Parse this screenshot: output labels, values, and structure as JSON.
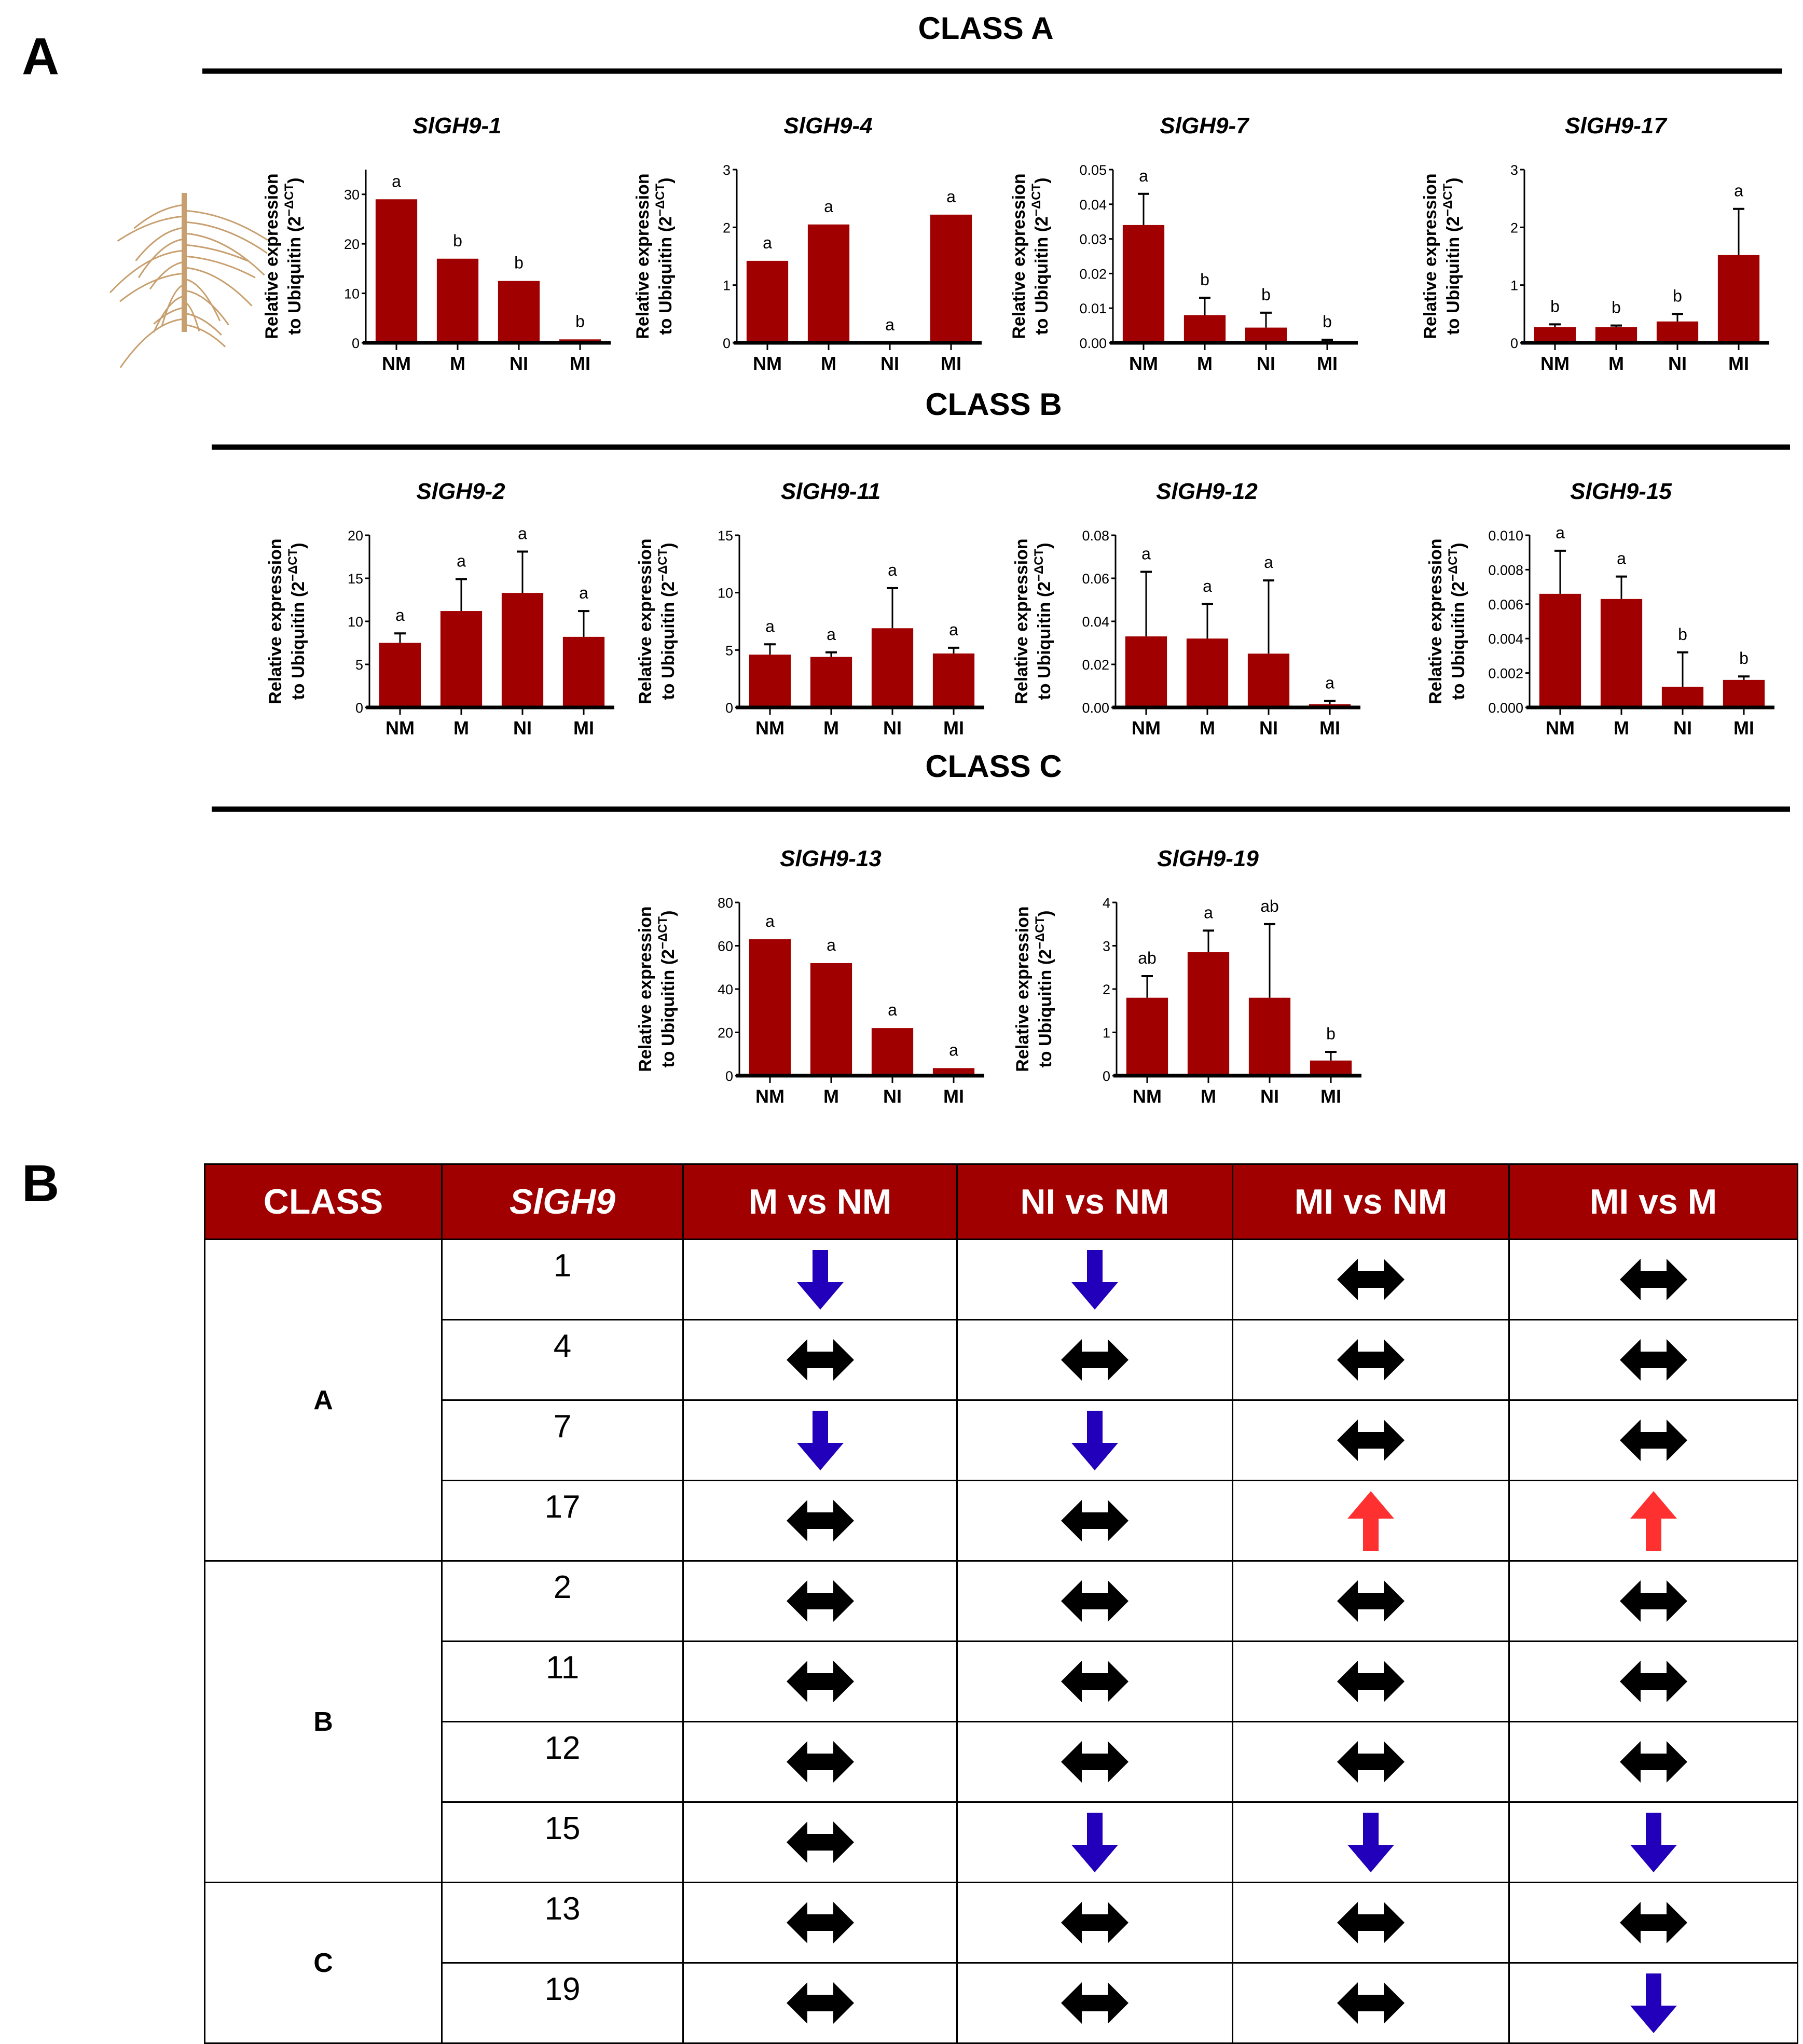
{
  "panel_labels": {
    "a": "A",
    "b": "B"
  },
  "class_titles": [
    "CLASS A",
    "CLASS B",
    "CLASS C"
  ],
  "ylabel": {
    "line1": "Relative expression",
    "line2": "to Ubiquitin (2",
    "exp": "−ΔCT",
    "close": ")"
  },
  "colors": {
    "bar": "#a00000",
    "down": "#2200bb",
    "up": "#ff3030",
    "both": "#000000",
    "header_bg": "#a00000",
    "root": "#c8a070"
  },
  "chart_data": [
    {
      "type": "bar",
      "class": "A",
      "title": "SlGH9-1",
      "categories": [
        "NM",
        "M",
        "NI",
        "MI"
      ],
      "values": [
        29,
        17,
        12.5,
        0.7
      ],
      "errors": [
        0,
        0,
        0,
        0
      ],
      "letters": [
        "a",
        "b",
        "b",
        "b"
      ],
      "ylim": [
        0,
        35
      ],
      "yticks": [
        0,
        10,
        20,
        30
      ]
    },
    {
      "type": "bar",
      "class": "A",
      "title": "SlGH9-4",
      "categories": [
        "NM",
        "M",
        "NI",
        "MI"
      ],
      "values": [
        1.42,
        2.05,
        0,
        2.22
      ],
      "errors": [
        0,
        0,
        0,
        0
      ],
      "letters": [
        "a",
        "a",
        "a",
        "a"
      ],
      "ylim": [
        0,
        3
      ],
      "yticks": [
        0,
        1,
        2,
        3
      ]
    },
    {
      "type": "bar",
      "class": "A",
      "title": "SlGH9-7",
      "categories": [
        "NM",
        "M",
        "NI",
        "MI"
      ],
      "values": [
        0.034,
        0.008,
        0.0044,
        0.0003
      ],
      "errors": [
        0.009,
        0.005,
        0.0043,
        0.0006
      ],
      "letters": [
        "a",
        "b",
        "b",
        "b"
      ],
      "ylim": [
        0,
        0.05
      ],
      "yticks": [
        "0.00",
        "0.01",
        "0.02",
        "0.03",
        "0.04",
        "0.05"
      ]
    },
    {
      "type": "bar",
      "class": "A",
      "title": "SlGH9-17",
      "categories": [
        "NM",
        "M",
        "NI",
        "MI"
      ],
      "values": [
        0.27,
        0.27,
        0.37,
        1.52
      ],
      "errors": [
        0.05,
        0.03,
        0.13,
        0.8
      ],
      "letters": [
        "b",
        "b",
        "b",
        "a"
      ],
      "ylim": [
        0,
        3
      ],
      "yticks": [
        0,
        1,
        2,
        3
      ]
    },
    {
      "type": "bar",
      "class": "B",
      "title": "SlGH9-2",
      "categories": [
        "NM",
        "M",
        "NI",
        "MI"
      ],
      "values": [
        7.5,
        11.2,
        13.3,
        8.2
      ],
      "errors": [
        1.1,
        3.7,
        4.8,
        3.0
      ],
      "letters": [
        "a",
        "a",
        "a",
        "a"
      ],
      "ylim": [
        0,
        20
      ],
      "yticks": [
        0,
        5,
        10,
        15,
        20
      ]
    },
    {
      "type": "bar",
      "class": "B",
      "title": "SlGH9-11",
      "categories": [
        "NM",
        "M",
        "NI",
        "MI"
      ],
      "values": [
        4.6,
        4.4,
        6.9,
        4.7
      ],
      "errors": [
        0.9,
        0.4,
        3.5,
        0.5
      ],
      "letters": [
        "a",
        "a",
        "a",
        "a"
      ],
      "ylim": [
        0,
        15
      ],
      "yticks": [
        0,
        5,
        10,
        15
      ]
    },
    {
      "type": "bar",
      "class": "B",
      "title": "SlGH9-12",
      "categories": [
        "NM",
        "M",
        "NI",
        "MI"
      ],
      "values": [
        0.033,
        0.032,
        0.025,
        0.0015
      ],
      "errors": [
        0.03,
        0.016,
        0.034,
        0.0015
      ],
      "letters": [
        "a",
        "a",
        "a",
        "a"
      ],
      "ylim": [
        0,
        0.08
      ],
      "yticks": [
        "0.00",
        "0.02",
        "0.04",
        "0.06",
        "0.08"
      ]
    },
    {
      "type": "bar",
      "class": "B",
      "title": "SlGH9-15",
      "categories": [
        "NM",
        "M",
        "NI",
        "MI"
      ],
      "values": [
        0.0066,
        0.0063,
        0.0012,
        0.0016
      ],
      "errors": [
        0.0025,
        0.0013,
        0.002,
        0.0002
      ],
      "letters": [
        "a",
        "a",
        "b",
        "b"
      ],
      "ylim": [
        0,
        0.01
      ],
      "yticks": [
        "0.000",
        "0.002",
        "0.004",
        "0.006",
        "0.008",
        "0.010"
      ]
    },
    {
      "type": "bar",
      "class": "C",
      "title": "SlGH9-13",
      "categories": [
        "NM",
        "M",
        "NI",
        "MI"
      ],
      "values": [
        63,
        52,
        22,
        3.5
      ],
      "errors": [
        0,
        0,
        0,
        0
      ],
      "letters": [
        "a",
        "a",
        "a",
        "a"
      ],
      "ylim": [
        0,
        80
      ],
      "yticks": [
        0,
        20,
        40,
        60,
        80
      ]
    },
    {
      "type": "bar",
      "class": "C",
      "title": "SlGH9-19",
      "categories": [
        "NM",
        "M",
        "NI",
        "MI"
      ],
      "values": [
        1.8,
        2.85,
        1.8,
        0.35
      ],
      "errors": [
        0.5,
        0.5,
        1.7,
        0.2
      ],
      "letters": [
        "ab",
        "a",
        "ab",
        "b"
      ],
      "ylim": [
        0,
        4
      ],
      "yticks": [
        0,
        1,
        2,
        3,
        4
      ]
    }
  ],
  "table": {
    "headers": [
      "CLASS",
      "SlGH9",
      "M vs NM",
      "NI vs NM",
      "MI vs NM",
      "MI vs M"
    ],
    "groups": [
      {
        "class": "A",
        "rows": [
          {
            "gene": "1",
            "cells": [
              "down",
              "down",
              "both",
              "both"
            ]
          },
          {
            "gene": "4",
            "cells": [
              "both",
              "both",
              "both",
              "both"
            ]
          },
          {
            "gene": "7",
            "cells": [
              "down",
              "down",
              "both",
              "both"
            ]
          },
          {
            "gene": "17",
            "cells": [
              "both",
              "both",
              "up",
              "up"
            ]
          }
        ]
      },
      {
        "class": "B",
        "rows": [
          {
            "gene": "2",
            "cells": [
              "both",
              "both",
              "both",
              "both"
            ]
          },
          {
            "gene": "11",
            "cells": [
              "both",
              "both",
              "both",
              "both"
            ]
          },
          {
            "gene": "12",
            "cells": [
              "both",
              "both",
              "both",
              "both"
            ]
          },
          {
            "gene": "15",
            "cells": [
              "both",
              "down",
              "down",
              "down"
            ]
          }
        ]
      },
      {
        "class": "C",
        "rows": [
          {
            "gene": "13",
            "cells": [
              "both",
              "both",
              "both",
              "both"
            ]
          },
          {
            "gene": "19",
            "cells": [
              "both",
              "both",
              "both",
              "down"
            ]
          }
        ]
      }
    ]
  }
}
